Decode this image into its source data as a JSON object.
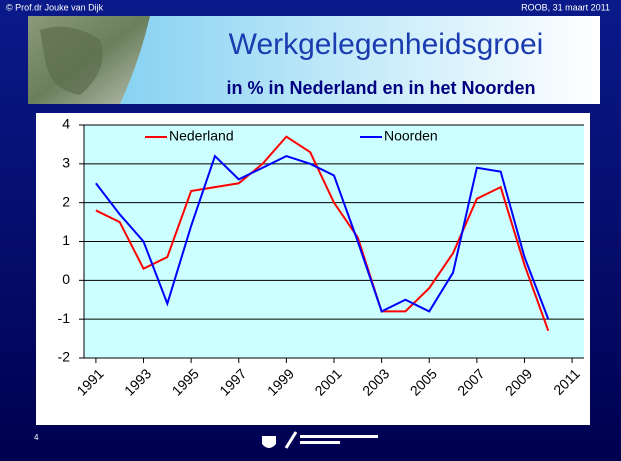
{
  "header": {
    "author": "© Prof.dr Jouke van Dijk",
    "event": "ROOB, 31 maart 2011"
  },
  "slide_number": "4",
  "chart_data": {
    "type": "line",
    "title": "Werkgelegenheidsgroei",
    "subtitle": "in % in Nederland en in het Noorden",
    "x": [
      1991,
      1992,
      1993,
      1994,
      1995,
      1996,
      1997,
      1998,
      1999,
      2000,
      2001,
      2002,
      2003,
      2004,
      2005,
      2006,
      2007,
      2008,
      2009,
      2010
    ],
    "series": [
      {
        "name": "Nederland",
        "color": "#ff0000",
        "values": [
          1.8,
          1.5,
          0.3,
          0.6,
          2.3,
          2.4,
          2.5,
          3.0,
          3.7,
          3.3,
          2.0,
          1.1,
          -0.8,
          -0.8,
          -0.2,
          0.7,
          2.1,
          2.4,
          0.4,
          -1.3
        ]
      },
      {
        "name": "Noorden",
        "color": "#0000ff",
        "values": [
          2.5,
          1.7,
          1.0,
          -0.6,
          1.4,
          3.2,
          2.6,
          2.9,
          3.2,
          3.0,
          2.7,
          1.0,
          -0.8,
          -0.5,
          -0.8,
          0.2,
          2.9,
          2.8,
          0.6,
          -1.0
        ]
      }
    ],
    "xlim": [
      1990.5,
      2011.5
    ],
    "xticks": [
      1991,
      1993,
      1995,
      1997,
      1999,
      2001,
      2003,
      2005,
      2007,
      2009,
      2011
    ],
    "ylim": [
      -2,
      4
    ],
    "yticks": [
      -2,
      -1,
      0,
      1,
      2,
      3,
      4
    ],
    "grid": true
  }
}
